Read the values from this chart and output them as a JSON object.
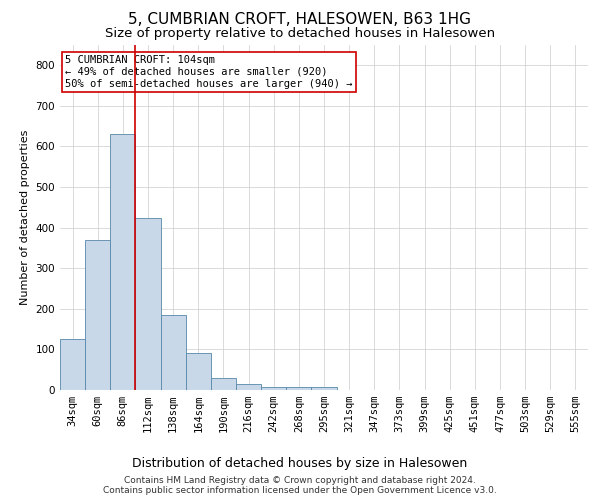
{
  "title1": "5, CUMBRIAN CROFT, HALESOWEN, B63 1HG",
  "title2": "Size of property relative to detached houses in Halesowen",
  "xlabel": "Distribution of detached houses by size in Halesowen",
  "ylabel": "Number of detached properties",
  "bar_values": [
    125,
    370,
    630,
    425,
    185,
    90,
    30,
    15,
    8,
    8,
    8,
    0,
    0,
    0,
    0,
    0,
    0,
    0,
    0,
    0,
    0
  ],
  "bar_labels": [
    "34sqm",
    "60sqm",
    "86sqm",
    "112sqm",
    "138sqm",
    "164sqm",
    "190sqm",
    "216sqm",
    "242sqm",
    "268sqm",
    "295sqm",
    "321sqm",
    "347sqm",
    "373sqm",
    "399sqm",
    "425sqm",
    "451sqm",
    "477sqm",
    "503sqm",
    "529sqm",
    "555sqm"
  ],
  "bar_color": "#c8d8e8",
  "bar_edge_color": "#5588aa",
  "grid_color": "#cccccc",
  "vline_x_pos": 2.5,
  "vline_color": "#cc0000",
  "annotation_text": "5 CUMBRIAN CROFT: 104sqm\n← 49% of detached houses are smaller (920)\n50% of semi-detached houses are larger (940) →",
  "annotation_box_color": "#ffffff",
  "annotation_box_edge_color": "#cc0000",
  "ylim": [
    0,
    850
  ],
  "yticks": [
    0,
    100,
    200,
    300,
    400,
    500,
    600,
    700,
    800
  ],
  "footer_text": "Contains HM Land Registry data © Crown copyright and database right 2024.\nContains public sector information licensed under the Open Government Licence v3.0.",
  "title1_fontsize": 11,
  "title2_fontsize": 9.5,
  "xlabel_fontsize": 9,
  "ylabel_fontsize": 8,
  "tick_fontsize": 7.5,
  "annotation_fontsize": 7.5,
  "footer_fontsize": 6.5
}
